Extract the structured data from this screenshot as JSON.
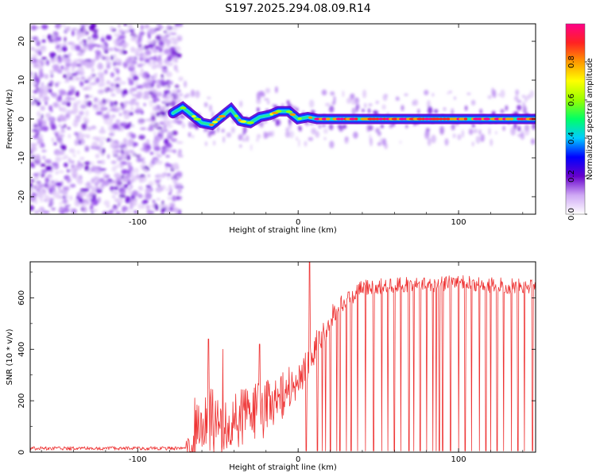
{
  "title": "S197.2025.294.08.09.R14",
  "chart_data": [
    {
      "type": "heatmap",
      "name": "spectrogram",
      "xlabel": "Height of straight line (km)",
      "ylabel": "Frequency (Hz)",
      "xlim": [
        -167,
        148
      ],
      "ylim": [
        -24.5,
        24.5
      ],
      "xticks": [
        -100,
        0,
        100
      ],
      "xtick_labels": [
        "-100",
        "0",
        "100"
      ],
      "yticks": [
        -20,
        -10,
        0,
        10,
        20
      ],
      "ytick_labels": [
        "-20",
        "-10",
        "0",
        "10",
        "20"
      ],
      "noise_region_x": [
        -167,
        -75
      ],
      "signal_start_x": -78,
      "signal_track": {
        "x": [
          -78,
          -72,
          -66,
          -60,
          -54,
          -48,
          -42,
          -36,
          -30,
          -24,
          -18,
          -12,
          -6,
          0,
          6,
          12,
          20,
          40,
          60,
          80,
          100,
          120,
          148
        ],
        "hz": [
          1.5,
          3.0,
          1.0,
          -1.0,
          -1.5,
          0.5,
          2.5,
          -0.5,
          -1.0,
          0.5,
          1.0,
          2.0,
          2.0,
          0.0,
          0.5,
          0.0,
          0.0,
          0.0,
          0.0,
          0.0,
          0.0,
          0.0,
          0.0
        ]
      }
    },
    {
      "type": "colorbar",
      "label": "Normalized spectral amplitude",
      "range": [
        0,
        1
      ],
      "ticks": [
        0.0,
        0.2,
        0.4,
        0.6,
        0.8
      ],
      "tick_labels": [
        "0.0",
        "0.2",
        "0.4",
        "0.6",
        "0.8"
      ],
      "colors": [
        "#ffffff",
        "#cfa8f5",
        "#6600cc",
        "#0000ff",
        "#00ccff",
        "#00ff66",
        "#99ff00",
        "#ffff00",
        "#ff9900",
        "#ff2222",
        "#ff0088"
      ]
    },
    {
      "type": "line",
      "name": "snr",
      "xlabel": "Height of straight line (km)",
      "ylabel": "SNR (10 * v/v)",
      "xlim": [
        -167,
        148
      ],
      "ylim": [
        0,
        740
      ],
      "xticks": [
        -100,
        0,
        100
      ],
      "xtick_labels": [
        "-100",
        "0",
        "100"
      ],
      "yticks": [
        0,
        200,
        400,
        600
      ],
      "ytick_labels": [
        "0",
        "200",
        "400",
        "600"
      ],
      "series": [
        {
          "name": "SNR",
          "color": "#ee3333",
          "envelope": {
            "x": [
              -167,
              -80,
              -70,
              -65,
              -60,
              -55,
              -50,
              -40,
              -30,
              -20,
              -10,
              -5,
              0,
              5,
              8,
              12,
              20,
              30,
              40,
              60,
              80,
              100,
              120,
              148
            ],
            "base": [
              15,
              15,
              20,
              80,
              120,
              130,
              110,
              110,
              150,
              170,
              210,
              260,
              290,
              310,
              360,
              420,
              520,
              590,
              640,
              650,
              650,
              660,
              650,
              640
            ],
            "amp": [
              8,
              8,
              20,
              140,
              150,
              150,
              120,
              120,
              120,
              110,
              100,
              90,
              80,
              80,
              70,
              60,
              50,
              35,
              30,
              30,
              30,
              30,
              30,
              30
            ]
          },
          "peaks": [
            {
              "x": -56,
              "y": 440
            },
            {
              "x": -47,
              "y": 400
            },
            {
              "x": -24,
              "y": 420
            },
            {
              "x": 7,
              "y": 740
            },
            {
              "x": 13,
              "y": 470
            }
          ],
          "dropouts_x": [
            5,
            12,
            15,
            17,
            20,
            24,
            26,
            30,
            33,
            37,
            42,
            47,
            52,
            56,
            60,
            64,
            69,
            72,
            76,
            80,
            84,
            86,
            88,
            90,
            95,
            100,
            104,
            108,
            113,
            117,
            120,
            124,
            128,
            133,
            137,
            141,
            146
          ]
        }
      ]
    }
  ]
}
